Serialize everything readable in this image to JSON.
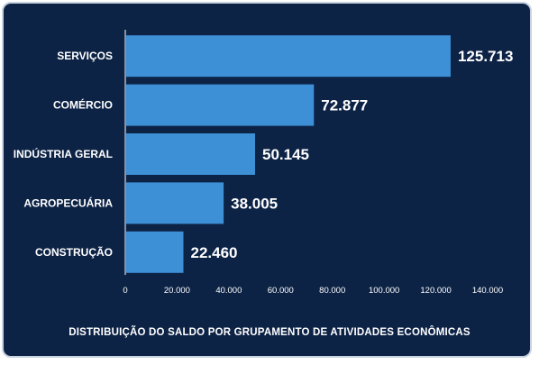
{
  "chart_data": {
    "type": "bar",
    "orientation": "horizontal",
    "title": "DISTRIBUIÇÃO DO SALDO POR GRUPAMENTO DE ATIVIDADES ECONÔMICAS",
    "categories": [
      "SERVIÇOS",
      "COMÉRCIO",
      "INDÚSTRIA GERAL",
      "AGROPECUÁRIA",
      "CONSTRUÇÃO"
    ],
    "values": [
      125713,
      72877,
      50145,
      38005,
      22460
    ],
    "value_labels": [
      "125.713",
      "72.877",
      "50.145",
      "38.005",
      "22.460"
    ],
    "x_ticks": [
      "0",
      "20.000",
      "40.000",
      "60.000",
      "80.000",
      "100.000",
      "120.000",
      "140.000"
    ],
    "xlim": [
      0,
      140000
    ],
    "grid": false,
    "legend": "none",
    "colors": {
      "background": "#0d2346",
      "bar": "#3d8fd6",
      "text": "#ffffff",
      "axis": "#ffffff",
      "border": "#c9d3e0"
    }
  }
}
